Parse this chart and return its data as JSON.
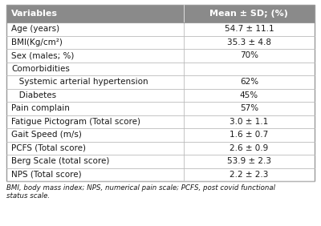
{
  "header": [
    "Variables",
    "Mean ± SD; (%)"
  ],
  "rows": [
    [
      "Age (years)",
      "54.7 ± 11.1"
    ],
    [
      "BMI(Kg/cm²)",
      "35.3 ± 4.8"
    ],
    [
      "Sex (males; %)",
      "70%"
    ],
    [
      "Comorbidities",
      ""
    ],
    [
      "   Systemic arterial hypertension",
      "62%"
    ],
    [
      "   Diabetes",
      "45%"
    ],
    [
      "Pain complain",
      "57%"
    ],
    [
      "Fatigue Pictogram (Total score)",
      "3.0 ± 1.1"
    ],
    [
      "Gait Speed (m/s)",
      "1.6 ± 0.7"
    ],
    [
      "PCFS (Total score)",
      "2.6 ± 0.9"
    ],
    [
      "Berg Scale (total score)",
      "53.9 ± 2.3"
    ],
    [
      "NPS (Total score)",
      "2.2 ± 2.3"
    ]
  ],
  "footnote": "BMI, body mass index; NPS, numerical pain scale; PCFS, post covid functional\nstatus scale.",
  "header_bg": "#8a8a8a",
  "header_text_color": "#ffffff",
  "row_line_color": "#bbbbbb",
  "outer_border_color": "#999999",
  "text_color": "#1a1a1a",
  "bg_color": "#ffffff",
  "col_split": 0.575
}
